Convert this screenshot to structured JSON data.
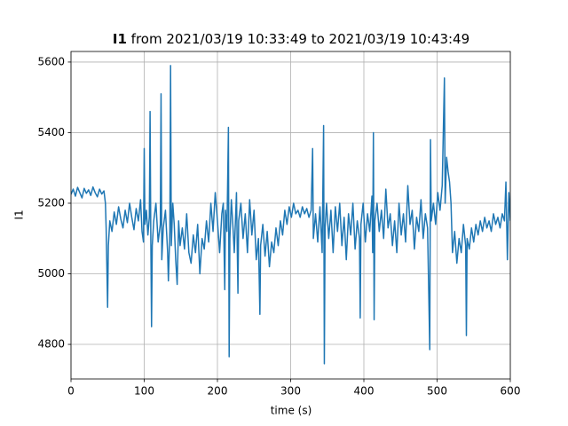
{
  "chart_data": {
    "type": "line",
    "title_bold": "I1",
    "title": "from 2021/03/19 10:33:49 to 2021/03/19 10:43:49",
    "xlabel": "time (s)",
    "ylabel": "I1",
    "xlim": [
      0,
      600
    ],
    "xticks": [
      0,
      100,
      200,
      300,
      400,
      500,
      600
    ],
    "ylim": [
      4702,
      5630
    ],
    "yticks": [
      4800,
      5000,
      5200,
      5400,
      5600
    ],
    "grid": true,
    "series": [
      {
        "color": "#1f77b4",
        "x": [
          0,
          3,
          6,
          9,
          12,
          15,
          18,
          21,
          24,
          27,
          30,
          33,
          36,
          39,
          42,
          45,
          47,
          48,
          50,
          51,
          53,
          56,
          59,
          62,
          65,
          68,
          71,
          74,
          77,
          80,
          83,
          86,
          89,
          92,
          95,
          97,
          99,
          100,
          101,
          103,
          105,
          107,
          108,
          109,
          110,
          111,
          113,
          116,
          119,
          122,
          123,
          124,
          126,
          129,
          132,
          133,
          135,
          136,
          137,
          139,
          141,
          143,
          145,
          147,
          149,
          152,
          155,
          158,
          161,
          164,
          167,
          170,
          173,
          176,
          179,
          182,
          185,
          188,
          191,
          194,
          197,
          200,
          203,
          206,
          208,
          210,
          211,
          213,
          215,
          216,
          217,
          219,
          221,
          223,
          226,
          228,
          229,
          232,
          235,
          238,
          241,
          244,
          247,
          250,
          253,
          256,
          258,
          259,
          262,
          265,
          268,
          271,
          274,
          277,
          280,
          283,
          286,
          289,
          292,
          295,
          298,
          301,
          304,
          307,
          310,
          313,
          316,
          319,
          322,
          325,
          328,
          330,
          331,
          334,
          337,
          340,
          343,
          345,
          346,
          347,
          349,
          352,
          355,
          358,
          361,
          364,
          367,
          370,
          373,
          376,
          379,
          382,
          385,
          388,
          391,
          394,
          395,
          396,
          399,
          402,
          405,
          408,
          411,
          412,
          413,
          414,
          415,
          418,
          421,
          424,
          427,
          430,
          433,
          436,
          439,
          442,
          445,
          448,
          451,
          454,
          457,
          460,
          463,
          466,
          469,
          472,
          475,
          478,
          481,
          484,
          487,
          490,
          491,
          492,
          495,
          498,
          501,
          504,
          507,
          510,
          511,
          513,
          515,
          517,
          519,
          521,
          524,
          527,
          530,
          533,
          536,
          539,
          540,
          541,
          544,
          547,
          550,
          553,
          556,
          559,
          562,
          565,
          568,
          571,
          574,
          577,
          580,
          583,
          586,
          589,
          592,
          594,
          596,
          598,
          600
        ],
        "values": [
          5225,
          5240,
          5220,
          5245,
          5230,
          5215,
          5242,
          5228,
          5238,
          5222,
          5246,
          5230,
          5218,
          5240,
          5226,
          5235,
          5200,
          5130,
          4905,
          5080,
          5150,
          5120,
          5175,
          5140,
          5190,
          5155,
          5130,
          5180,
          5145,
          5200,
          5160,
          5125,
          5185,
          5150,
          5210,
          5120,
          5090,
          5355,
          5140,
          5180,
          5110,
          5160,
          5460,
          5100,
          4850,
          5080,
          5150,
          5200,
          5090,
          5140,
          5510,
          5040,
          5130,
          5180,
          5060,
          4980,
          5120,
          5590,
          5080,
          5200,
          5140,
          5040,
          4970,
          5150,
          5080,
          5130,
          5070,
          5170,
          5060,
          5030,
          5110,
          5060,
          5140,
          5000,
          5100,
          5070,
          5150,
          5090,
          5200,
          5120,
          5230,
          5150,
          5060,
          5170,
          5200,
          4955,
          5180,
          5120,
          5415,
          4765,
          5100,
          5210,
          5140,
          5060,
          5230,
          4945,
          5150,
          5200,
          5100,
          5170,
          5060,
          5210,
          5110,
          5180,
          5040,
          5100,
          4885,
          5080,
          5140,
          5050,
          5120,
          5020,
          5090,
          5060,
          5130,
          5080,
          5150,
          5110,
          5180,
          5140,
          5190,
          5160,
          5200,
          5170,
          5180,
          5160,
          5190,
          5170,
          5185,
          5160,
          5180,
          5355,
          5100,
          5170,
          5090,
          5190,
          5060,
          5420,
          4745,
          5130,
          5200,
          5100,
          5180,
          5060,
          5190,
          5120,
          5200,
          5080,
          5160,
          5040,
          5170,
          5110,
          5200,
          5070,
          5150,
          5100,
          4875,
          5140,
          5200,
          5090,
          5170,
          5120,
          5220,
          5060,
          5400,
          4870,
          5150,
          5200,
          5120,
          5180,
          5100,
          5240,
          5130,
          5170,
          5080,
          5150,
          5060,
          5200,
          5110,
          5170,
          5090,
          5250,
          5140,
          5180,
          5070,
          5160,
          5120,
          5210,
          5100,
          5170,
          5130,
          4785,
          5380,
          5150,
          5200,
          5140,
          5230,
          5180,
          5250,
          5555,
          5200,
          5330,
          5290,
          5260,
          5200,
          5060,
          5120,
          5030,
          5100,
          5060,
          5140,
          5080,
          4825,
          5100,
          5070,
          5130,
          5090,
          5140,
          5110,
          5150,
          5120,
          5160,
          5130,
          5150,
          5120,
          5170,
          5140,
          5160,
          5130,
          5170,
          5150,
          5260,
          5040,
          5230,
          5150
        ]
      }
    ]
  }
}
